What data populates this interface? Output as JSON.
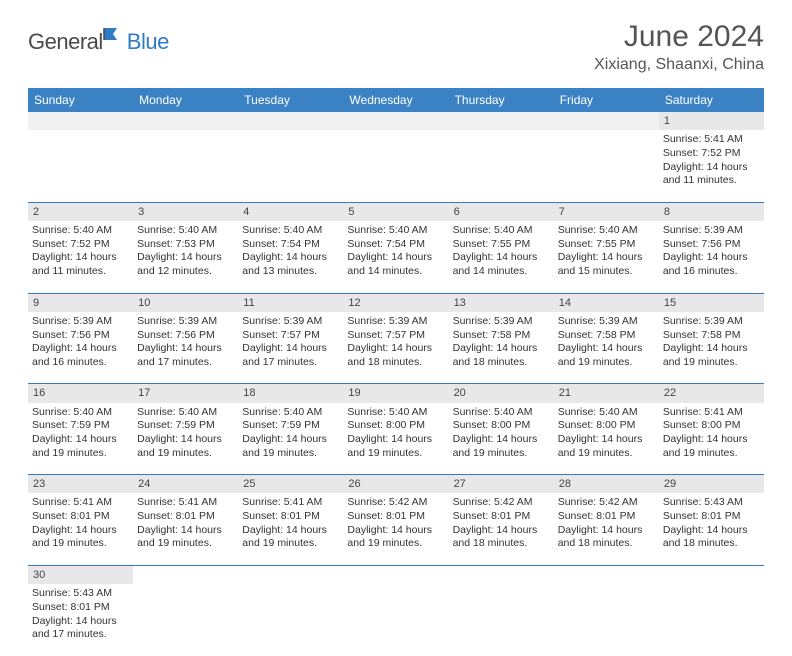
{
  "logo": {
    "part1": "General",
    "part2": "Blue"
  },
  "title": "June 2024",
  "location": "Xixiang, Shaanxi, China",
  "colors": {
    "header_bg": "#3b82c4",
    "header_text": "#ffffff",
    "border": "#2f7cc4",
    "daynum_bg": "#e8e8e8",
    "text": "#333333",
    "title_color": "#555555",
    "logo_gray": "#4a4a4a",
    "logo_blue": "#2f7cc4"
  },
  "weekdays": [
    "Sunday",
    "Monday",
    "Tuesday",
    "Wednesday",
    "Thursday",
    "Friday",
    "Saturday"
  ],
  "weeks": [
    [
      null,
      null,
      null,
      null,
      null,
      null,
      {
        "d": "1",
        "sr": "5:41 AM",
        "ss": "7:52 PM",
        "dl": "14 hours and 11 minutes."
      }
    ],
    [
      {
        "d": "2",
        "sr": "5:40 AM",
        "ss": "7:52 PM",
        "dl": "14 hours and 11 minutes."
      },
      {
        "d": "3",
        "sr": "5:40 AM",
        "ss": "7:53 PM",
        "dl": "14 hours and 12 minutes."
      },
      {
        "d": "4",
        "sr": "5:40 AM",
        "ss": "7:54 PM",
        "dl": "14 hours and 13 minutes."
      },
      {
        "d": "5",
        "sr": "5:40 AM",
        "ss": "7:54 PM",
        "dl": "14 hours and 14 minutes."
      },
      {
        "d": "6",
        "sr": "5:40 AM",
        "ss": "7:55 PM",
        "dl": "14 hours and 14 minutes."
      },
      {
        "d": "7",
        "sr": "5:40 AM",
        "ss": "7:55 PM",
        "dl": "14 hours and 15 minutes."
      },
      {
        "d": "8",
        "sr": "5:39 AM",
        "ss": "7:56 PM",
        "dl": "14 hours and 16 minutes."
      }
    ],
    [
      {
        "d": "9",
        "sr": "5:39 AM",
        "ss": "7:56 PM",
        "dl": "14 hours and 16 minutes."
      },
      {
        "d": "10",
        "sr": "5:39 AM",
        "ss": "7:56 PM",
        "dl": "14 hours and 17 minutes."
      },
      {
        "d": "11",
        "sr": "5:39 AM",
        "ss": "7:57 PM",
        "dl": "14 hours and 17 minutes."
      },
      {
        "d": "12",
        "sr": "5:39 AM",
        "ss": "7:57 PM",
        "dl": "14 hours and 18 minutes."
      },
      {
        "d": "13",
        "sr": "5:39 AM",
        "ss": "7:58 PM",
        "dl": "14 hours and 18 minutes."
      },
      {
        "d": "14",
        "sr": "5:39 AM",
        "ss": "7:58 PM",
        "dl": "14 hours and 19 minutes."
      },
      {
        "d": "15",
        "sr": "5:39 AM",
        "ss": "7:58 PM",
        "dl": "14 hours and 19 minutes."
      }
    ],
    [
      {
        "d": "16",
        "sr": "5:40 AM",
        "ss": "7:59 PM",
        "dl": "14 hours and 19 minutes."
      },
      {
        "d": "17",
        "sr": "5:40 AM",
        "ss": "7:59 PM",
        "dl": "14 hours and 19 minutes."
      },
      {
        "d": "18",
        "sr": "5:40 AM",
        "ss": "7:59 PM",
        "dl": "14 hours and 19 minutes."
      },
      {
        "d": "19",
        "sr": "5:40 AM",
        "ss": "8:00 PM",
        "dl": "14 hours and 19 minutes."
      },
      {
        "d": "20",
        "sr": "5:40 AM",
        "ss": "8:00 PM",
        "dl": "14 hours and 19 minutes."
      },
      {
        "d": "21",
        "sr": "5:40 AM",
        "ss": "8:00 PM",
        "dl": "14 hours and 19 minutes."
      },
      {
        "d": "22",
        "sr": "5:41 AM",
        "ss": "8:00 PM",
        "dl": "14 hours and 19 minutes."
      }
    ],
    [
      {
        "d": "23",
        "sr": "5:41 AM",
        "ss": "8:01 PM",
        "dl": "14 hours and 19 minutes."
      },
      {
        "d": "24",
        "sr": "5:41 AM",
        "ss": "8:01 PM",
        "dl": "14 hours and 19 minutes."
      },
      {
        "d": "25",
        "sr": "5:41 AM",
        "ss": "8:01 PM",
        "dl": "14 hours and 19 minutes."
      },
      {
        "d": "26",
        "sr": "5:42 AM",
        "ss": "8:01 PM",
        "dl": "14 hours and 19 minutes."
      },
      {
        "d": "27",
        "sr": "5:42 AM",
        "ss": "8:01 PM",
        "dl": "14 hours and 18 minutes."
      },
      {
        "d": "28",
        "sr": "5:42 AM",
        "ss": "8:01 PM",
        "dl": "14 hours and 18 minutes."
      },
      {
        "d": "29",
        "sr": "5:43 AM",
        "ss": "8:01 PM",
        "dl": "14 hours and 18 minutes."
      }
    ],
    [
      {
        "d": "30",
        "sr": "5:43 AM",
        "ss": "8:01 PM",
        "dl": "14 hours and 17 minutes."
      },
      null,
      null,
      null,
      null,
      null,
      null
    ]
  ],
  "labels": {
    "sunrise": "Sunrise:",
    "sunset": "Sunset:",
    "daylight": "Daylight:"
  }
}
